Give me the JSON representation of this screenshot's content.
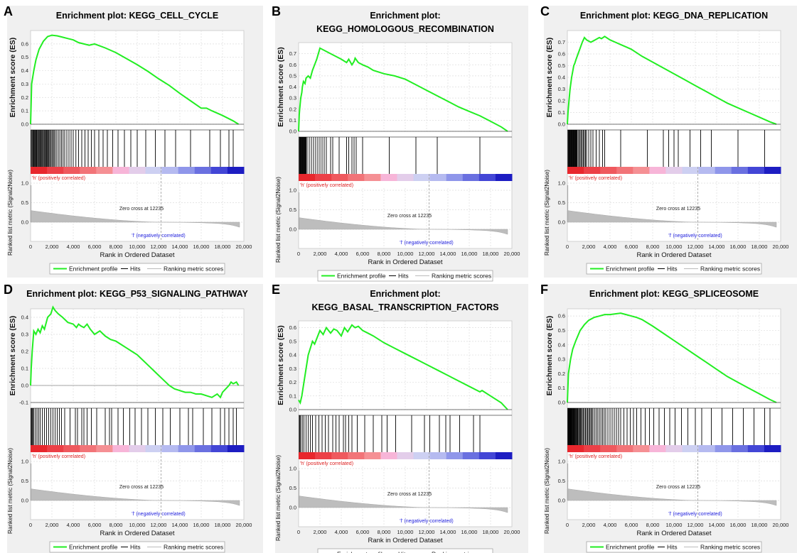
{
  "chart_data": [
    {
      "panel": "A",
      "type": "line",
      "title_lines": [
        "Enrichment plot: KEGG_CELL_CYCLE"
      ],
      "ylabel": "Enrichment score (ES)",
      "ylim": [
        0,
        0.7
      ],
      "yticks": [
        0.0,
        0.1,
        0.2,
        0.3,
        0.4,
        0.5,
        0.6
      ],
      "es_x": [
        0,
        100,
        300,
        500,
        800,
        1200,
        1600,
        2000,
        2500,
        3000,
        3500,
        4000,
        4500,
        5000,
        5500,
        6000,
        6500,
        7000,
        8000,
        9000,
        10000,
        11000,
        12000,
        13000,
        14000,
        15000,
        16000,
        16500,
        17000,
        18000,
        19000,
        19500
      ],
      "es_y": [
        0,
        0.3,
        0.4,
        0.48,
        0.56,
        0.62,
        0.655,
        0.665,
        0.66,
        0.65,
        0.64,
        0.63,
        0.61,
        0.6,
        0.59,
        0.6,
        0.585,
        0.57,
        0.535,
        0.49,
        0.445,
        0.395,
        0.34,
        0.29,
        0.23,
        0.175,
        0.12,
        0.12,
        0.1,
        0.065,
        0.025,
        0.0
      ],
      "hits": [
        40,
        120,
        200,
        260,
        330,
        400,
        470,
        540,
        600,
        680,
        750,
        820,
        900,
        980,
        1050,
        1120,
        1200,
        1280,
        1350,
        1420,
        1500,
        1580,
        1650,
        1720,
        1800,
        1900,
        2000,
        2100,
        2200,
        2300,
        2450,
        2600,
        2750,
        2900,
        3050,
        3200,
        3400,
        3600,
        3800,
        4000,
        4250,
        4500,
        4800,
        5100,
        5400,
        5700,
        6000,
        6400,
        6800,
        7200,
        7700,
        8200,
        8800,
        9400,
        10000,
        10800,
        11700,
        12600,
        13600,
        15000,
        16800,
        17800,
        18600,
        19000
      ]
    },
    {
      "panel": "B",
      "type": "line",
      "title_lines": [
        "Enrichment plot:",
        "KEGG_HOMOLOGOUS_RECOMBINATION"
      ],
      "ylabel": "Enrichment score (ES)",
      "ylim": [
        0,
        0.8
      ],
      "yticks": [
        0.0,
        0.1,
        0.2,
        0.3,
        0.4,
        0.5,
        0.6,
        0.7
      ],
      "es_x": [
        0,
        60,
        100,
        200,
        300,
        350,
        450,
        600,
        700,
        900,
        1100,
        1300,
        1500,
        1700,
        2000,
        3000,
        4000,
        4500,
        4700,
        5000,
        5200,
        5300,
        5600,
        6000,
        6500,
        7000,
        8000,
        9000,
        10000,
        11000,
        12000,
        13000,
        14000,
        15000,
        16000,
        17000,
        18000,
        19000,
        19600
      ],
      "es_y": [
        0,
        0.15,
        0.2,
        0.3,
        0.35,
        0.4,
        0.45,
        0.43,
        0.48,
        0.5,
        0.48,
        0.55,
        0.6,
        0.65,
        0.75,
        0.7,
        0.65,
        0.62,
        0.65,
        0.6,
        0.63,
        0.66,
        0.62,
        0.6,
        0.58,
        0.55,
        0.52,
        0.5,
        0.47,
        0.42,
        0.37,
        0.32,
        0.27,
        0.22,
        0.18,
        0.14,
        0.09,
        0.04,
        0.0
      ],
      "hits": [
        50,
        100,
        150,
        200,
        250,
        300,
        350,
        400,
        450,
        500,
        550,
        600,
        650,
        700,
        800,
        1000,
        1200,
        1400,
        1600,
        1800,
        2000,
        2200,
        2400,
        2600,
        3000,
        3200,
        3800,
        4500,
        4700,
        5000,
        5200,
        5400,
        6000,
        8500,
        11000,
        13000,
        17000
      ]
    },
    {
      "panel": "C",
      "type": "line",
      "title_lines": [
        "Enrichment plot: KEGG_DNA_REPLICATION"
      ],
      "ylabel": "Enrichment score (ES)",
      "ylim": [
        0,
        0.8
      ],
      "yticks": [
        0.0,
        0.1,
        0.2,
        0.3,
        0.4,
        0.5,
        0.6,
        0.7
      ],
      "es_x": [
        0,
        60,
        150,
        250,
        400,
        500,
        600,
        700,
        800,
        1000,
        1200,
        1400,
        1600,
        1800,
        2200,
        2600,
        3000,
        3200,
        3500,
        4000,
        4500,
        5000,
        5500,
        6000,
        7000,
        8000,
        9000,
        10000,
        11000,
        12000,
        13000,
        14000,
        15000,
        16000,
        17000,
        18000,
        19000,
        19600
      ],
      "es_y": [
        0,
        0.1,
        0.2,
        0.3,
        0.4,
        0.45,
        0.5,
        0.52,
        0.55,
        0.6,
        0.65,
        0.7,
        0.74,
        0.72,
        0.7,
        0.72,
        0.74,
        0.73,
        0.75,
        0.72,
        0.7,
        0.68,
        0.66,
        0.64,
        0.58,
        0.53,
        0.48,
        0.43,
        0.38,
        0.33,
        0.28,
        0.23,
        0.18,
        0.14,
        0.1,
        0.06,
        0.02,
        0.0
      ],
      "hits": [
        50,
        100,
        150,
        200,
        250,
        300,
        350,
        400,
        450,
        500,
        550,
        600,
        650,
        700,
        750,
        800,
        850,
        900,
        1000,
        1100,
        1200,
        1300,
        1400,
        1500,
        1600,
        1700,
        1800,
        2000,
        2200,
        2400,
        2700,
        3000,
        3300,
        3500,
        5000,
        7500,
        9000,
        9500,
        10000,
        10400,
        11500,
        12500,
        13500,
        16000,
        18500
      ]
    },
    {
      "panel": "D",
      "type": "line",
      "title_lines": [
        "Enrichment plot: KEGG_P53_SIGNALING_PATHWAY"
      ],
      "ylabel": "Enrichment score (ES)",
      "ylim": [
        -0.1,
        0.45
      ],
      "yticks": [
        -0.1,
        0.0,
        0.1,
        0.2,
        0.3,
        0.4
      ],
      "es_x": [
        0,
        60,
        150,
        300,
        500,
        700,
        900,
        1100,
        1300,
        1600,
        1900,
        2100,
        2300,
        2600,
        3000,
        3500,
        4000,
        4300,
        4500,
        4700,
        5000,
        5300,
        5600,
        6000,
        6500,
        7000,
        7500,
        8000,
        8500,
        9000,
        9500,
        10000,
        10500,
        11000,
        11500,
        12000,
        12500,
        13000,
        13500,
        14000,
        14500,
        15000,
        15500,
        16000,
        16500,
        17000,
        17500,
        17800,
        18000,
        18300,
        18600,
        18800,
        19000,
        19300,
        19500
      ],
      "es_y": [
        0,
        0.1,
        0.2,
        0.32,
        0.3,
        0.33,
        0.31,
        0.35,
        0.33,
        0.4,
        0.42,
        0.46,
        0.44,
        0.42,
        0.4,
        0.37,
        0.36,
        0.34,
        0.36,
        0.35,
        0.34,
        0.36,
        0.33,
        0.3,
        0.32,
        0.29,
        0.27,
        0.26,
        0.24,
        0.22,
        0.2,
        0.18,
        0.15,
        0.12,
        0.09,
        0.06,
        0.03,
        0.0,
        -0.02,
        -0.03,
        -0.04,
        -0.04,
        -0.05,
        -0.05,
        -0.06,
        -0.07,
        -0.05,
        -0.07,
        -0.04,
        -0.02,
        0.0,
        0.02,
        0.01,
        0.02,
        0.0
      ],
      "hits": [
        40,
        80,
        150,
        200,
        300,
        450,
        600,
        750,
        900,
        1100,
        1300,
        1500,
        1700,
        1900,
        2100,
        2300,
        2500,
        2700,
        2900,
        3200,
        3700,
        4200,
        4400,
        4800,
        5000,
        5300,
        5700,
        6200,
        7000,
        7400,
        7600,
        8200,
        8700,
        9300,
        9800,
        10400,
        11000,
        11700,
        12400,
        13100,
        14000,
        14800,
        15200,
        16200,
        17000,
        17800,
        18200,
        18600,
        19000,
        19300
      ]
    },
    {
      "panel": "E",
      "type": "line",
      "title_lines": [
        "Enrichment plot:",
        "KEGG_BASAL_TRANSCRIPTION_FACTORS"
      ],
      "ylabel": "Enrichment score (ES)",
      "ylim": [
        0,
        0.65
      ],
      "yticks": [
        0.0,
        0.1,
        0.2,
        0.3,
        0.4,
        0.5,
        0.6
      ],
      "es_x": [
        0,
        150,
        300,
        500,
        700,
        900,
        1100,
        1300,
        1500,
        1700,
        2000,
        2300,
        2600,
        3000,
        3300,
        3600,
        4000,
        4300,
        4600,
        5000,
        5300,
        5600,
        6000,
        6500,
        7000,
        8000,
        9000,
        10000,
        11000,
        12000,
        13000,
        14000,
        15000,
        16000,
        17000,
        17200,
        18000,
        19000,
        19600
      ],
      "es_y": [
        0.07,
        0.05,
        0.1,
        0.2,
        0.3,
        0.4,
        0.45,
        0.5,
        0.48,
        0.52,
        0.58,
        0.55,
        0.6,
        0.56,
        0.59,
        0.58,
        0.54,
        0.6,
        0.57,
        0.62,
        0.6,
        0.61,
        0.58,
        0.56,
        0.54,
        0.49,
        0.45,
        0.41,
        0.37,
        0.33,
        0.29,
        0.25,
        0.21,
        0.17,
        0.13,
        0.14,
        0.1,
        0.05,
        0.0
      ],
      "hits": [
        60,
        120,
        200,
        350,
        500,
        700,
        900,
        1100,
        1300,
        1600,
        1900,
        2200,
        2500,
        2800,
        3200,
        3500,
        3800,
        4200,
        4400,
        4700,
        5000,
        5500,
        6200,
        7000,
        7800,
        8300,
        9100,
        10600,
        11800,
        12300,
        13200,
        13800,
        14200,
        15100,
        16400,
        17000
      ]
    },
    {
      "panel": "F",
      "type": "line",
      "title_lines": [
        "Enrichment plot: KEGG_SPLICEOSOME"
      ],
      "ylabel": "Enrichment score (ES)",
      "ylim": [
        0,
        0.65
      ],
      "yticks": [
        0.0,
        0.1,
        0.2,
        0.3,
        0.4,
        0.5,
        0.6
      ],
      "es_x": [
        0,
        100,
        300,
        500,
        800,
        1200,
        1600,
        2000,
        2500,
        3000,
        3500,
        4000,
        4500,
        5000,
        5500,
        6000,
        6500,
        7000,
        8000,
        9000,
        10000,
        11000,
        12000,
        13000,
        14000,
        15000,
        16000,
        17000,
        18000,
        19000,
        19600
      ],
      "es_y": [
        0,
        0.2,
        0.3,
        0.37,
        0.43,
        0.5,
        0.54,
        0.57,
        0.59,
        0.6,
        0.61,
        0.61,
        0.615,
        0.62,
        0.61,
        0.6,
        0.59,
        0.575,
        0.53,
        0.48,
        0.43,
        0.38,
        0.33,
        0.28,
        0.23,
        0.18,
        0.14,
        0.1,
        0.06,
        0.02,
        0.0
      ],
      "hits": [
        40,
        80,
        120,
        160,
        200,
        240,
        280,
        320,
        360,
        400,
        450,
        500,
        550,
        600,
        650,
        700,
        760,
        820,
        880,
        940,
        1000,
        1080,
        1160,
        1240,
        1320,
        1400,
        1500,
        1600,
        1700,
        1800,
        1900,
        2000,
        2100,
        2200,
        2300,
        2400,
        2550,
        2700,
        2850,
        3000,
        3150,
        3300,
        3450,
        3600,
        3800,
        4000,
        4200,
        4400,
        4600,
        4800,
        5000,
        5300,
        5600,
        5900,
        6200,
        6500,
        6900,
        7300,
        7700,
        8100,
        8600,
        9100,
        9600,
        10100,
        10700,
        11300,
        12000,
        12600,
        13500,
        14500,
        15500,
        16500,
        17500,
        18500,
        19000
      ]
    }
  ],
  "common": {
    "x_ticks": [
      "0",
      "2,000",
      "4,000",
      "6,000",
      "8,000",
      "10,000",
      "12,000",
      "14,000",
      "16,000",
      "18,000",
      "20,000"
    ],
    "x_max": 20000,
    "xlabel": "Rank in Ordered Dataset",
    "ylabel_es": "Enrichment score (ES)",
    "ylabel_metric": "Ranked list metric (Signal2Noise)",
    "metric_yticks": [
      "1.0",
      "0.5",
      "0.0"
    ],
    "pos_label": "'h' (positively correlated)",
    "neg_label": "'l' (negatively correlated)",
    "zero_cross": "Zero cross at 12235",
    "zero_cross_rank": 12235,
    "legend": [
      "Enrichment profile",
      "Hits",
      "Ranking metric scores"
    ],
    "colors": {
      "es_line": "#22ee22",
      "pos_text": "#dd2222",
      "neg_text": "#2222dd",
      "metric_fill": "#bdbdbd"
    }
  }
}
